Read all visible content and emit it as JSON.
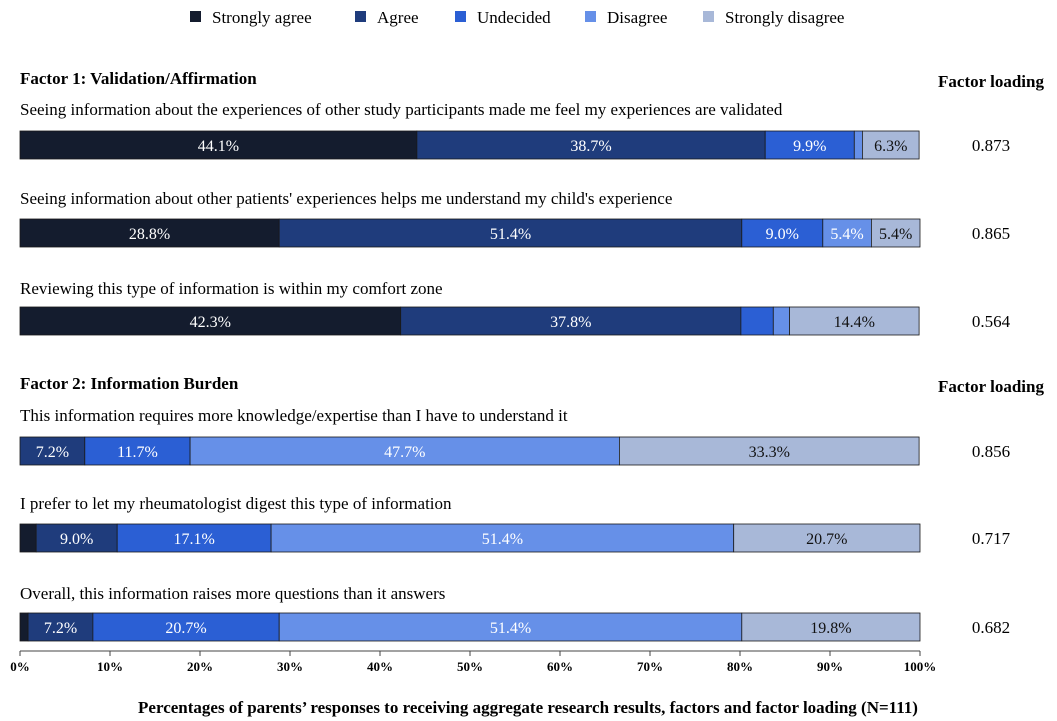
{
  "chart_data": {
    "type": "bar",
    "orientation": "horizontal",
    "stacked": true,
    "legend_position": "top",
    "grid": false,
    "xlim": [
      0,
      100
    ],
    "x_ticks": [
      "0%",
      "10%",
      "20%",
      "30%",
      "40%",
      "50%",
      "60%",
      "70%",
      "80%",
      "90%",
      "100%"
    ],
    "caption": "Percentages of parents’ responses to receiving aggregate research results, factors and factor loading (N=111)",
    "series": [
      {
        "name": "Strongly agree",
        "color": "#141c2e"
      },
      {
        "name": "Agree",
        "color": "#1f3c7c"
      },
      {
        "name": "Undecided",
        "color": "#2b5fd4"
      },
      {
        "name": "Disagree",
        "color": "#6690e8"
      },
      {
        "name": "Strongly disagree",
        "color": "#a8b8d8"
      }
    ],
    "groups": [
      {
        "title": "Factor 1: Validation/Affirmation",
        "loading_header": "Factor loading",
        "items": [
          {
            "statement": "Seeing information about the experiences of other study participants made me feel my experiences are validated",
            "values": [
              44.1,
              38.7,
              9.9,
              0.9,
              6.3
            ],
            "labels": [
              "44.1%",
              "38.7%",
              "9.9%",
              "",
              "6.3%"
            ],
            "loading": "0.873"
          },
          {
            "statement": "Seeing information about other patients' experiences helps me understand my child's experience",
            "values": [
              28.8,
              51.4,
              9.0,
              5.4,
              5.4
            ],
            "labels": [
              "28.8%",
              "51.4%",
              "9.0%",
              "5.4%",
              "5.4%"
            ],
            "loading": "0.865"
          },
          {
            "statement": "Reviewing this type of information is within my comfort zone",
            "values": [
              42.3,
              37.8,
              3.6,
              1.8,
              14.4
            ],
            "labels": [
              "42.3%",
              "37.8%",
              "",
              "",
              "14.4%"
            ],
            "loading": "0.564"
          }
        ]
      },
      {
        "title": "Factor 2: Information Burden",
        "loading_header": "Factor loading",
        "items": [
          {
            "statement": "This information requires more knowledge/expertise than I have to understand it",
            "values": [
              7.2,
              11.7,
              47.7,
              0,
              33.3
            ],
            "labels": [
              "7.2%",
              "11.7%",
              "47.7%",
              "",
              "33.3%"
            ],
            "colors": [
              "#1f3c7c",
              "#2b5fd4",
              "#6690e8",
              "#6690e8",
              "#a8b8d8"
            ],
            "loading": "0.856"
          },
          {
            "statement": "I prefer to let my rheumatologist digest this type of information",
            "values": [
              1.8,
              9.0,
              17.1,
              51.4,
              20.7
            ],
            "labels": [
              "",
              "9.0%",
              "17.1%",
              "51.4%",
              "20.7%"
            ],
            "loading": "0.717"
          },
          {
            "statement": "Overall, this information raises more questions than it answers",
            "values": [
              0.9,
              7.2,
              20.7,
              51.4,
              19.8
            ],
            "labels": [
              "",
              "7.2%",
              "20.7%",
              "51.4%",
              "19.8%"
            ],
            "loading": "0.682"
          }
        ]
      }
    ]
  }
}
